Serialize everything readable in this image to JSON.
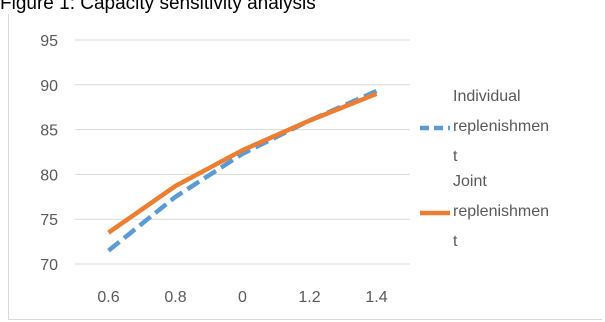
{
  "caption": "Figure 1: Capacity sensitivity analysis",
  "chart_data": {
    "type": "line",
    "categories": [
      "0.6",
      "0.8",
      "0",
      "1.2",
      "1.4"
    ],
    "ylim": [
      70,
      95
    ],
    "yticks": [
      70,
      75,
      80,
      85,
      90,
      95
    ],
    "grid": true,
    "legend_position": "right",
    "series": [
      {
        "name": "Individual replenishment",
        "legend_lines": [
          "Individual",
          "replenishmen",
          "t"
        ],
        "color": "#5b9bd5",
        "dashed": true,
        "values": [
          71.5,
          77.5,
          82.3,
          86.0,
          89.3
        ]
      },
      {
        "name": "Joint replenishment",
        "legend_lines": [
          "Joint",
          "replenishmen",
          "t"
        ],
        "color": "#ed7d31",
        "dashed": false,
        "values": [
          73.5,
          78.7,
          82.7,
          86.0,
          89.0
        ]
      }
    ]
  }
}
